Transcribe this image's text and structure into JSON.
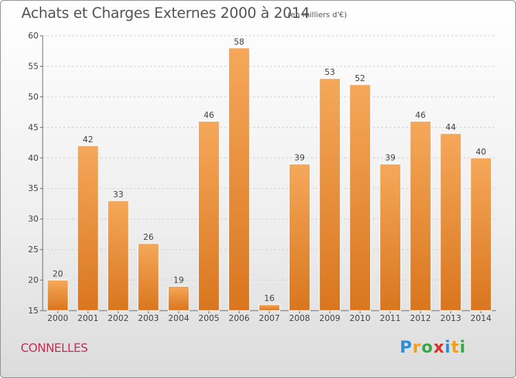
{
  "title": "Achats et Charges Externes 2000 à 2014",
  "subtitle": "(en milliers d'€)",
  "commune": "CONNELLES",
  "logo": {
    "letters": [
      "P",
      "r",
      "o",
      "x",
      "i",
      "t",
      "i"
    ],
    "colors": [
      "#2a8fd6",
      "#f0a020",
      "#3aa84a",
      "#d8322c",
      "#2a8fd6",
      "#f0a020",
      "#3aa84a"
    ]
  },
  "colors": {
    "bar_light": "#f5a85a",
    "bar_dark": "#d9761e",
    "title": "#555555",
    "commune": "#c0305a"
  },
  "chart_data": {
    "type": "bar",
    "categories": [
      "2000",
      "2001",
      "2002",
      "2003",
      "2004",
      "2005",
      "2006",
      "2007",
      "2008",
      "2009",
      "2010",
      "2011",
      "2012",
      "2013",
      "2014"
    ],
    "values": [
      20,
      42,
      33,
      26,
      19,
      46,
      58,
      16,
      39,
      53,
      52,
      39,
      46,
      44,
      40
    ],
    "title": "Achats et Charges Externes 2000 à 2014",
    "subtitle": "(en milliers d'€)",
    "xlabel": "",
    "ylabel": "",
    "ylim": [
      15,
      60
    ],
    "yticks": [
      15,
      20,
      25,
      30,
      35,
      40,
      45,
      50,
      55,
      60
    ],
    "grid": true,
    "data_labels": true
  }
}
